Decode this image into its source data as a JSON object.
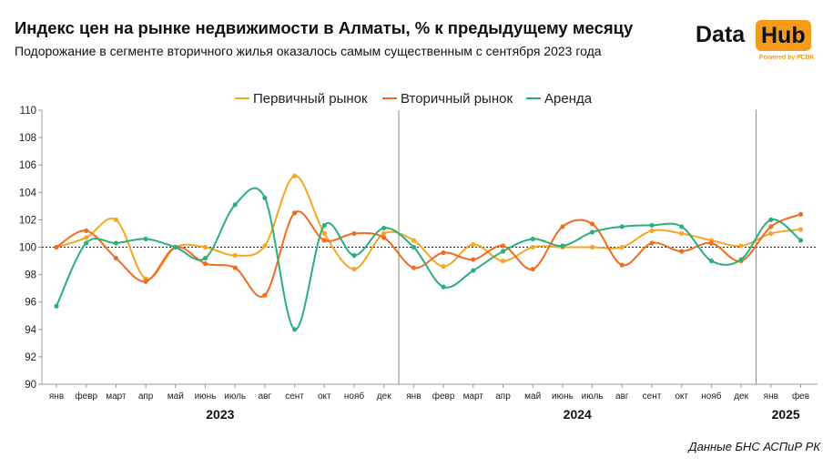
{
  "header": {
    "title": "Индекс цен на рынке недвижимости в Алматы, % к предыдущему месяцу",
    "subtitle": "Подорожание в сегменте вторичного жилья оказалось самым существенным с сентября 2023 года"
  },
  "logo": {
    "part1": "Data",
    "part2": "Hub",
    "powered": "Powered by FCBK",
    "accent_color": "#f59b1c"
  },
  "source": "Данные БНС АСПиР РК",
  "chart_data": {
    "type": "line",
    "x": [
      "янв",
      "февр",
      "март",
      "апр",
      "май",
      "июнь",
      "июль",
      "авг",
      "сент",
      "окт",
      "нояб",
      "дек",
      "янв",
      "февр",
      "март",
      "апр",
      "май",
      "июнь",
      "июль",
      "авг",
      "сент",
      "окт",
      "нояб",
      "дек",
      "янв",
      "фев"
    ],
    "year_labels": [
      "2023",
      "2024",
      "2025"
    ],
    "ylim": [
      90,
      110
    ],
    "yticks": [
      90,
      92,
      94,
      96,
      98,
      100,
      102,
      104,
      106,
      108,
      110
    ],
    "reference_line": 100,
    "legend_position": "top-center",
    "series": [
      {
        "name": "Первичный рынок",
        "color": "#f5a623",
        "values": [
          100.0,
          100.7,
          102.0,
          97.7,
          100.0,
          100.0,
          99.4,
          100.1,
          105.2,
          101.0,
          98.4,
          101.0,
          100.5,
          98.6,
          100.2,
          99.0,
          100.0,
          100.0,
          100.0,
          100.0,
          101.2,
          101.0,
          100.5,
          100.1,
          101.0,
          101.3
        ]
      },
      {
        "name": "Вторичный рынок",
        "color": "#f26b21",
        "values": [
          100.0,
          101.2,
          99.2,
          97.5,
          100.0,
          98.8,
          98.5,
          96.5,
          102.5,
          100.5,
          101.0,
          100.7,
          98.5,
          99.6,
          99.1,
          100.1,
          98.4,
          101.5,
          101.7,
          98.7,
          100.3,
          99.7,
          100.3,
          99.0,
          101.5,
          102.4
        ]
      },
      {
        "name": "Аренда",
        "color": "#2cae7d",
        "values": [
          95.7,
          100.3,
          100.3,
          100.6,
          100.0,
          99.2,
          103.1,
          103.6,
          94.0,
          101.6,
          99.4,
          101.4,
          100.0,
          97.1,
          98.3,
          99.7,
          100.6,
          100.1,
          101.1,
          101.5,
          101.6,
          101.5,
          99.0,
          99.1,
          102.0,
          100.5
        ]
      }
    ]
  }
}
